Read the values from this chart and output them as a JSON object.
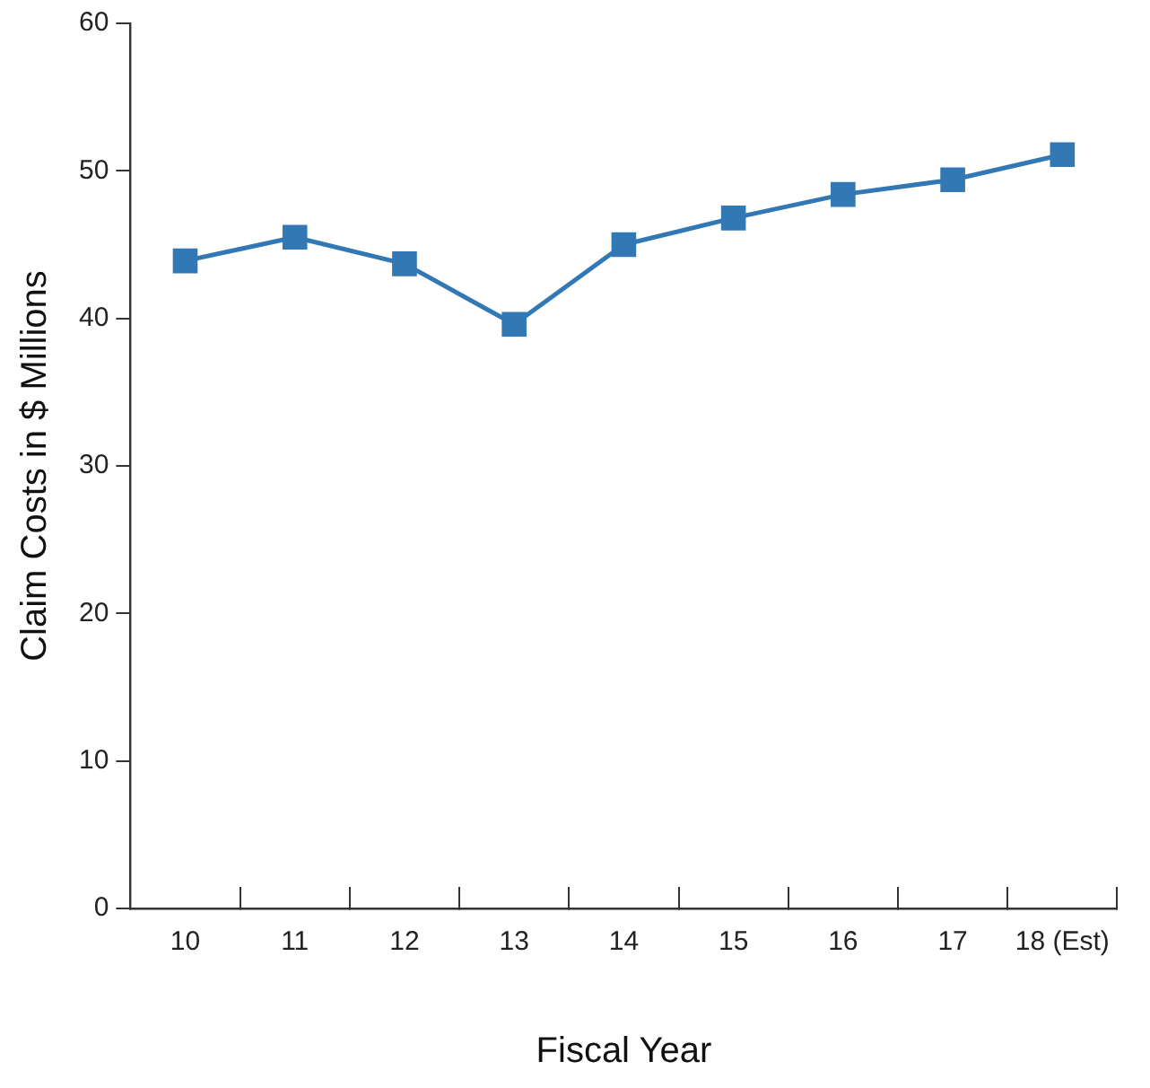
{
  "chart_data": {
    "type": "line",
    "xlabel": "Fiscal Year",
    "ylabel": "Claim Costs in $ Millions",
    "categories": [
      "10",
      "11",
      "12",
      "13",
      "14",
      "15",
      "16",
      "17",
      "18 (Est)"
    ],
    "series": [
      {
        "color": "#3278b4",
        "values": [
          43.9,
          45.5,
          43.7,
          39.6,
          45.0,
          46.8,
          48.4,
          49.4,
          51.1
        ]
      }
    ],
    "ylim": [
      0,
      60
    ],
    "yticks": [
      0,
      10,
      20,
      30,
      40,
      50,
      60
    ],
    "grid": false,
    "legend": false,
    "marker": "square",
    "line_style": "solid"
  }
}
